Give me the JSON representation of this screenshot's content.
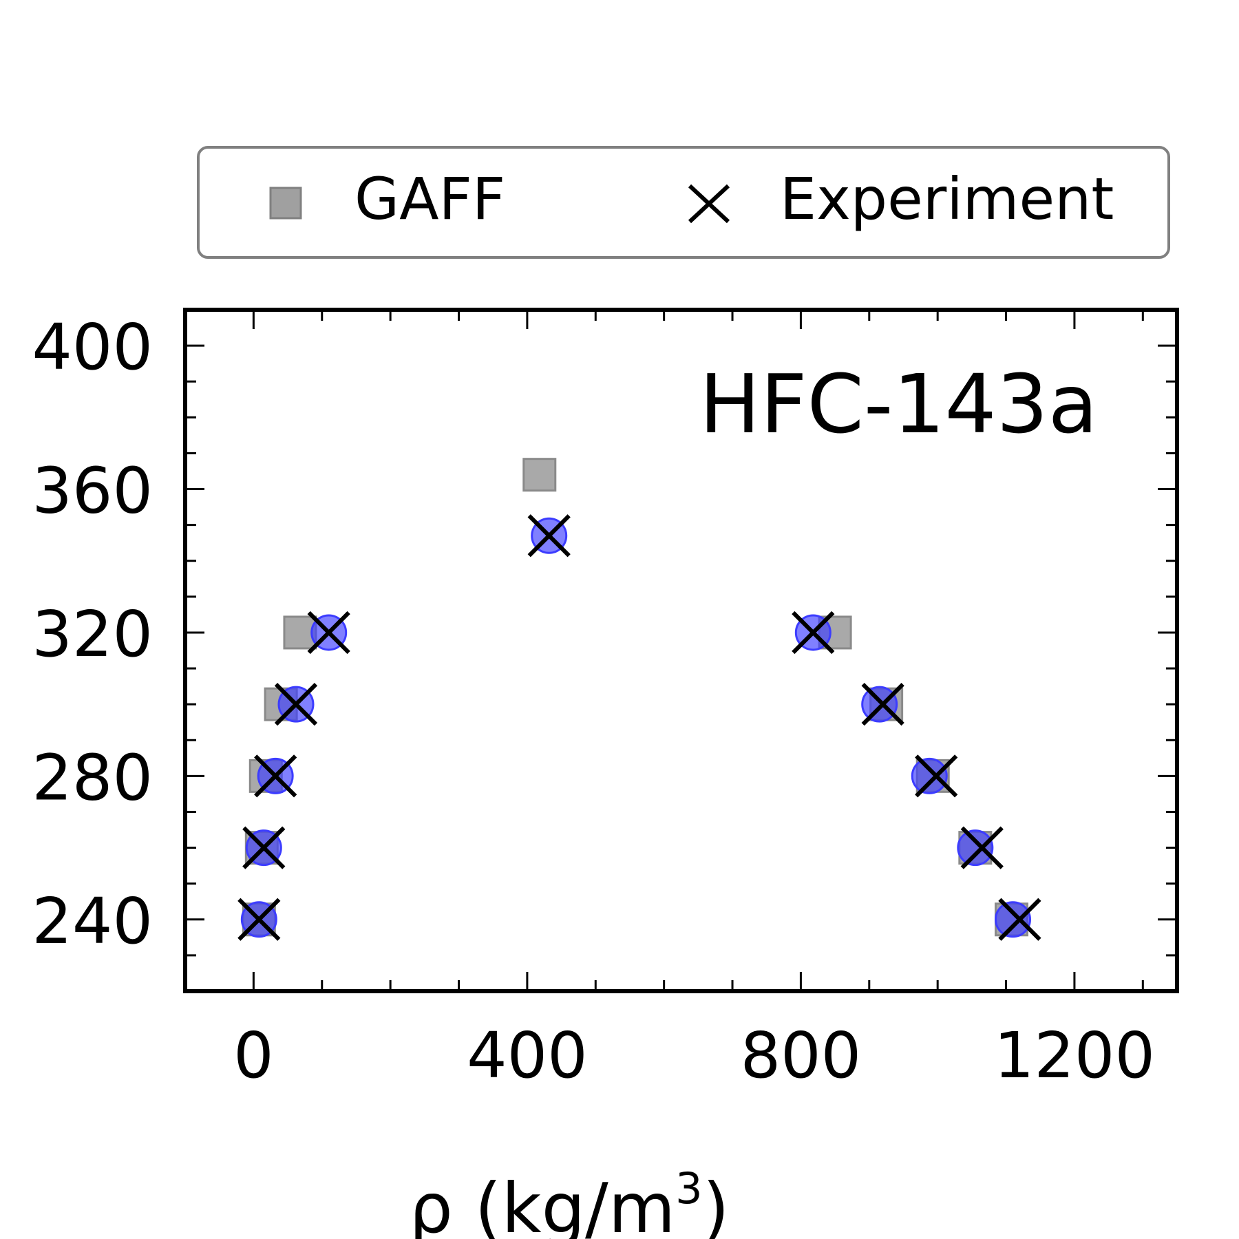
{
  "chart_data": {
    "type": "scatter",
    "title": "",
    "annotation": "HFC-143a",
    "xlabel": "ρ (kg/m",
    "xlabel_sup": "3",
    "xlabel_suffix": ")",
    "ylabel": "",
    "xlim": [
      -100,
      1350
    ],
    "ylim": [
      220,
      410
    ],
    "x_ticks": [
      0,
      400,
      800,
      1200
    ],
    "y_ticks": [
      240,
      280,
      320,
      360,
      400
    ],
    "x_minor_step": 100,
    "y_minor_step": 10,
    "legend": {
      "placement": "top",
      "entries": [
        "GAFF",
        "Experiment"
      ]
    },
    "colors": {
      "gaff": "#a0a0a0",
      "blue": "#3c3cff",
      "experiment": "#000000"
    },
    "series": [
      {
        "name": "GAFF",
        "marker": "square",
        "points": [
          [
            418,
            364
          ],
          [
            68,
            320
          ],
          [
            40,
            300
          ],
          [
            18,
            280
          ],
          [
            12,
            260
          ],
          [
            8,
            240
          ],
          [
            850,
            320
          ],
          [
            925,
            300
          ],
          [
            993,
            280
          ],
          [
            1055,
            260
          ],
          [
            1108,
            240
          ]
        ]
      },
      {
        "marker": "circle",
        "points": [
          [
            432,
            347
          ],
          [
            110,
            320
          ],
          [
            62,
            300
          ],
          [
            32,
            280
          ],
          [
            15,
            260
          ],
          [
            8,
            240
          ],
          [
            818,
            320
          ],
          [
            915,
            300
          ],
          [
            988,
            280
          ],
          [
            1055,
            260
          ],
          [
            1110,
            240
          ]
        ]
      },
      {
        "name": "Experiment",
        "marker": "x",
        "points": [
          [
            432,
            347
          ],
          [
            110,
            320
          ],
          [
            62,
            300
          ],
          [
            32,
            280
          ],
          [
            15,
            260
          ],
          [
            8,
            240
          ],
          [
            818,
            320
          ],
          [
            920,
            300
          ],
          [
            998,
            280
          ],
          [
            1065,
            260
          ],
          [
            1120,
            240
          ]
        ]
      }
    ]
  }
}
